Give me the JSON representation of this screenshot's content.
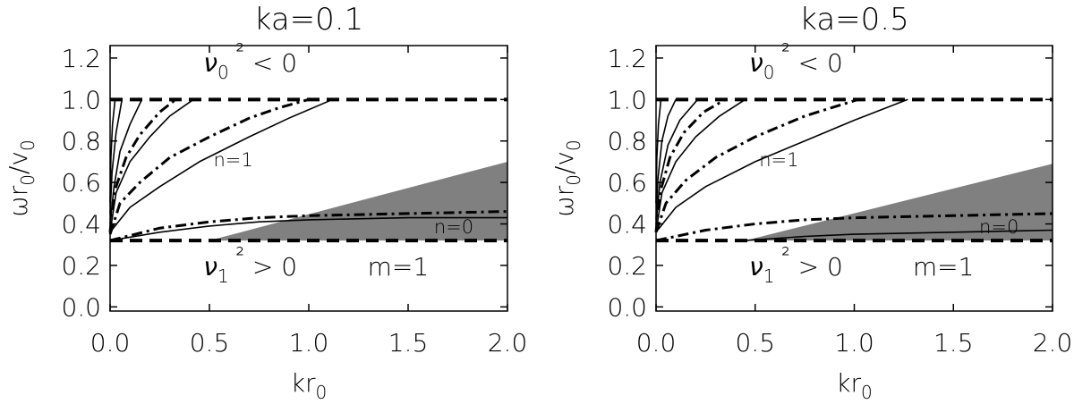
{
  "chart_data": [
    {
      "type": "line",
      "title": "ka=0.1",
      "xlabel": "kr_0",
      "ylabel": "ωr_0/v_0",
      "xlim": [
        0,
        2
      ],
      "ylim": [
        -0.02,
        1.26
      ],
      "xticks": [
        "0.0",
        "0.5",
        "1.0",
        "1.5",
        "2.0"
      ],
      "yticks": [
        "0.0",
        "0.2",
        "0.4",
        "0.6",
        "0.8",
        "1.0",
        "1.2"
      ],
      "grid": false,
      "shaded_region": {
        "polygon": [
          [
            0.5,
            0.32
          ],
          [
            2.0,
            0.32
          ],
          [
            2.0,
            0.7
          ]
        ]
      },
      "reference_lines": [
        {
          "name": "upper cutoff",
          "y": 1.0,
          "style": "dashed"
        },
        {
          "name": "lower cutoff",
          "y": 0.32,
          "style": "dashed"
        }
      ],
      "annotations": {
        "top": "ν_0² < 0",
        "bottom": "ν_1² > 0",
        "m": "m=1",
        "n1": "n=1",
        "n0": "n=0"
      },
      "series": [
        {
          "style": "solid",
          "x": [
            0,
            0.1,
            0.25,
            0.45,
            0.7,
            0.9,
            1.12
          ],
          "y": [
            0.36,
            0.48,
            0.58,
            0.7,
            0.82,
            0.91,
            1.0
          ]
        },
        {
          "style": "dashdot",
          "x": [
            0,
            0.05,
            0.15,
            0.3,
            0.5,
            0.7,
            0.85,
            1.0
          ],
          "y": [
            0.35,
            0.5,
            0.6,
            0.72,
            0.82,
            0.91,
            0.96,
            1.0
          ]
        },
        {
          "style": "solid",
          "x": [
            0,
            0.03,
            0.1,
            0.2,
            0.3,
            0.42
          ],
          "y": [
            0.36,
            0.55,
            0.7,
            0.82,
            0.92,
            1.0
          ]
        },
        {
          "style": "dashdot",
          "x": [
            0,
            0.02,
            0.08,
            0.15,
            0.25,
            0.33
          ],
          "y": [
            0.36,
            0.55,
            0.72,
            0.83,
            0.94,
            1.0
          ]
        },
        {
          "style": "solid",
          "x": [
            0,
            0.02,
            0.05,
            0.1,
            0.16
          ],
          "y": [
            0.4,
            0.58,
            0.75,
            0.88,
            1.0
          ]
        },
        {
          "style": "solid",
          "x": [
            0,
            0.01,
            0.03,
            0.06
          ],
          "y": [
            0.45,
            0.65,
            0.84,
            1.0
          ]
        },
        {
          "style": "solid",
          "x": [
            0,
            0.004,
            0.012,
            0.025
          ],
          "y": [
            0.5,
            0.72,
            0.88,
            1.0
          ]
        },
        {
          "style": "solid",
          "x": [
            0,
            0.25,
            0.5,
            0.75,
            1.0,
            1.5,
            2.0
          ],
          "y": [
            0.32,
            0.36,
            0.39,
            0.41,
            0.42,
            0.43,
            0.43
          ]
        },
        {
          "style": "dashdot",
          "x": [
            0,
            0.25,
            0.5,
            0.75,
            1.0,
            1.5,
            2.0
          ],
          "y": [
            0.32,
            0.38,
            0.41,
            0.43,
            0.44,
            0.45,
            0.46
          ]
        }
      ]
    },
    {
      "type": "line",
      "title": "ka=0.5",
      "xlabel": "kr_0",
      "ylabel": "ωr_0/v_0",
      "xlim": [
        0,
        2
      ],
      "ylim": [
        -0.02,
        1.26
      ],
      "xticks": [
        "0.0",
        "0.5",
        "1.0",
        "1.5",
        "2.0"
      ],
      "yticks": [
        "0.0",
        "0.2",
        "0.4",
        "0.6",
        "0.8",
        "1.0",
        "1.2"
      ],
      "grid": false,
      "shaded_region": {
        "polygon": [
          [
            0.45,
            0.32
          ],
          [
            2.0,
            0.32
          ],
          [
            2.0,
            0.69
          ]
        ]
      },
      "reference_lines": [
        {
          "name": "upper cutoff",
          "y": 1.0,
          "style": "dashed"
        },
        {
          "name": "lower cutoff",
          "y": 0.32,
          "style": "dashed"
        }
      ],
      "annotations": {
        "top": "ν_0² < 0",
        "bottom": "ν_1² > 0",
        "m": "m=1",
        "n1": "n=1",
        "n0": "n=0"
      },
      "series": [
        {
          "style": "solid",
          "x": [
            0,
            0.1,
            0.25,
            0.5,
            0.75,
            1.0,
            1.27
          ],
          "y": [
            0.36,
            0.48,
            0.58,
            0.7,
            0.8,
            0.9,
            1.0
          ]
        },
        {
          "style": "dashdot",
          "x": [
            0,
            0.05,
            0.15,
            0.3,
            0.5,
            0.75,
            1.02
          ],
          "y": [
            0.36,
            0.5,
            0.61,
            0.72,
            0.82,
            0.92,
            1.0
          ]
        },
        {
          "style": "solid",
          "x": [
            0,
            0.03,
            0.1,
            0.2,
            0.32,
            0.45
          ],
          "y": [
            0.36,
            0.55,
            0.7,
            0.82,
            0.92,
            1.0
          ]
        },
        {
          "style": "dashdot",
          "x": [
            0,
            0.02,
            0.07,
            0.14,
            0.24,
            0.35
          ],
          "y": [
            0.36,
            0.55,
            0.72,
            0.84,
            0.94,
            1.0
          ]
        },
        {
          "style": "solid",
          "x": [
            0,
            0.02,
            0.06,
            0.12,
            0.21
          ],
          "y": [
            0.4,
            0.6,
            0.78,
            0.9,
            1.0
          ]
        },
        {
          "style": "solid",
          "x": [
            0,
            0.01,
            0.03,
            0.06,
            0.1
          ],
          "y": [
            0.42,
            0.62,
            0.8,
            0.92,
            1.0
          ]
        },
        {
          "style": "solid",
          "x": [
            0,
            0.004,
            0.012,
            0.025
          ],
          "y": [
            0.5,
            0.72,
            0.88,
            1.0
          ]
        },
        {
          "style": "solid",
          "x": [
            0.45,
            0.75,
            1.0,
            1.5,
            2.0
          ],
          "y": [
            0.32,
            0.34,
            0.35,
            0.36,
            0.37
          ]
        },
        {
          "style": "dashdot",
          "x": [
            0,
            0.25,
            0.5,
            0.75,
            1.0,
            1.5,
            2.0
          ],
          "y": [
            0.32,
            0.37,
            0.4,
            0.42,
            0.43,
            0.44,
            0.45
          ]
        }
      ]
    }
  ]
}
